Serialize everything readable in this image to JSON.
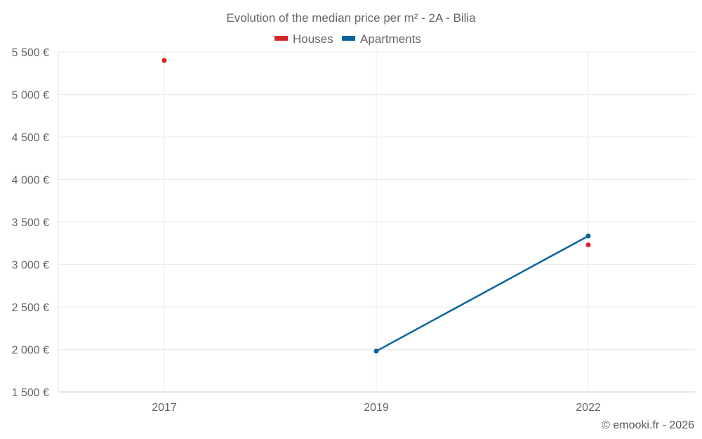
{
  "chart_data": {
    "type": "line",
    "title": "Evolution of the median price per m² - 2A - Bilia",
    "categories": [
      "2017",
      "2019",
      "2022"
    ],
    "y_ticks": [
      1500,
      2000,
      2500,
      3000,
      3500,
      4000,
      4500,
      5000,
      5500
    ],
    "y_tick_labels": [
      "1 500 €",
      "2 000 €",
      "2 500 €",
      "3 000 €",
      "3 500 €",
      "4 000 €",
      "4 500 €",
      "5 000 €",
      "5 500 €"
    ],
    "ylim": [
      1500,
      5500
    ],
    "series": [
      {
        "name": "Houses",
        "color": "#d62728",
        "values": [
          5400,
          null,
          3230
        ]
      },
      {
        "name": "Apartments",
        "color": "#07659c",
        "values": [
          null,
          1980,
          3335
        ]
      }
    ],
    "grid": true,
    "legend": "top-center"
  },
  "credit": "© emooki.fr - 2026"
}
